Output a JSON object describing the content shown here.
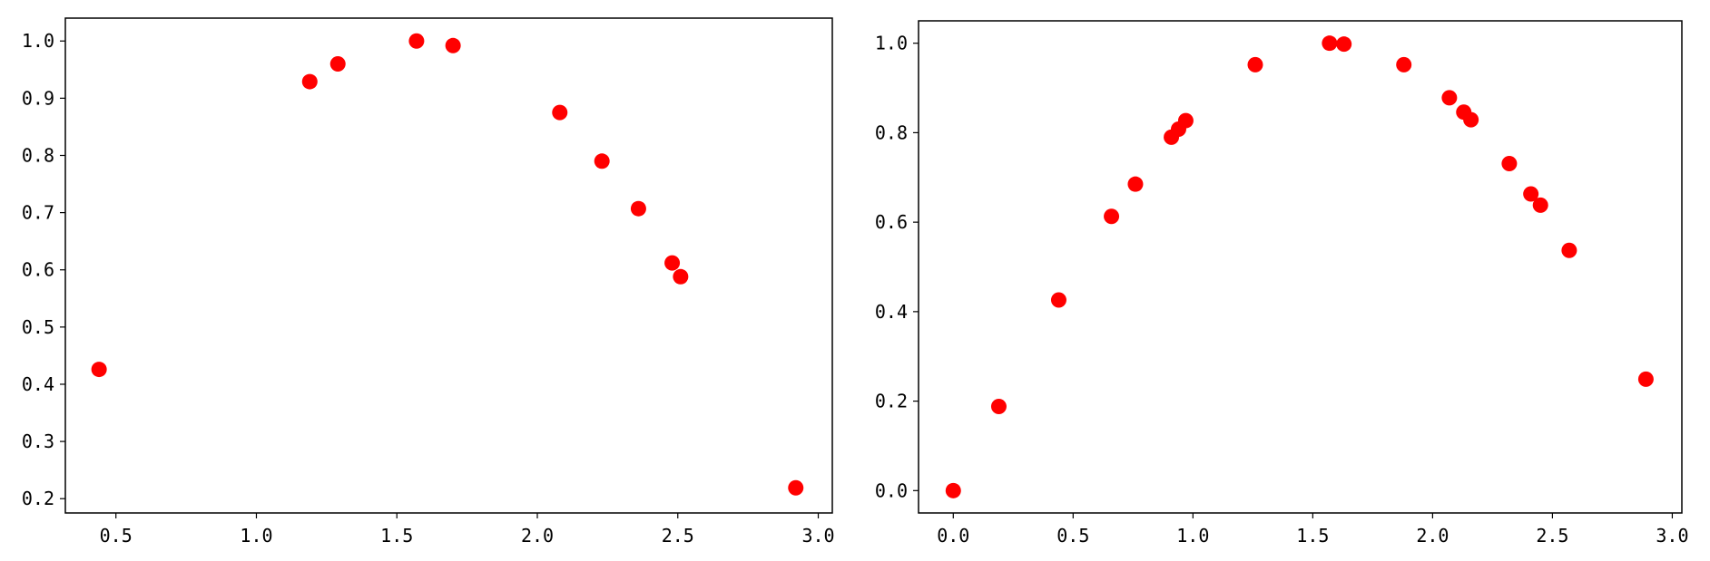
{
  "chart_data": [
    {
      "type": "scatter",
      "color": "#ff0000",
      "xlim": [
        0.32,
        3.05
      ],
      "ylim": [
        0.175,
        1.04
      ],
      "xticks": [
        "0.5",
        "1.0",
        "1.5",
        "2.0",
        "2.5",
        "3.0"
      ],
      "yticks": [
        "0.2",
        "0.3",
        "0.4",
        "0.5",
        "0.6",
        "0.7",
        "0.8",
        "0.9",
        "1.0"
      ],
      "points": [
        {
          "x": 0.44,
          "y": 0.426
        },
        {
          "x": 1.19,
          "y": 0.929
        },
        {
          "x": 1.29,
          "y": 0.96
        },
        {
          "x": 1.57,
          "y": 1.0
        },
        {
          "x": 1.7,
          "y": 0.992
        },
        {
          "x": 2.08,
          "y": 0.875
        },
        {
          "x": 2.23,
          "y": 0.79
        },
        {
          "x": 2.36,
          "y": 0.707
        },
        {
          "x": 2.48,
          "y": 0.612
        },
        {
          "x": 2.51,
          "y": 0.588
        },
        {
          "x": 2.92,
          "y": 0.219
        }
      ],
      "grid": false
    },
    {
      "type": "scatter",
      "color": "#ff0000",
      "xlim": [
        -0.145,
        3.04
      ],
      "ylim": [
        -0.05,
        1.05
      ],
      "xticks": [
        "0.0",
        "0.5",
        "1.0",
        "1.5",
        "2.0",
        "2.5",
        "3.0"
      ],
      "yticks": [
        "0.0",
        "0.2",
        "0.4",
        "0.6",
        "0.8",
        "1.0"
      ],
      "points": [
        {
          "x": 0.0,
          "y": 0.0
        },
        {
          "x": 0.19,
          "y": 0.188
        },
        {
          "x": 0.44,
          "y": 0.426
        },
        {
          "x": 0.66,
          "y": 0.613
        },
        {
          "x": 0.76,
          "y": 0.685
        },
        {
          "x": 0.91,
          "y": 0.79
        },
        {
          "x": 0.94,
          "y": 0.808
        },
        {
          "x": 0.97,
          "y": 0.827
        },
        {
          "x": 1.26,
          "y": 0.952
        },
        {
          "x": 1.57,
          "y": 1.0
        },
        {
          "x": 1.63,
          "y": 0.998
        },
        {
          "x": 1.88,
          "y": 0.952
        },
        {
          "x": 2.07,
          "y": 0.878
        },
        {
          "x": 2.13,
          "y": 0.846
        },
        {
          "x": 2.16,
          "y": 0.829
        },
        {
          "x": 2.32,
          "y": 0.731
        },
        {
          "x": 2.41,
          "y": 0.663
        },
        {
          "x": 2.45,
          "y": 0.638
        },
        {
          "x": 2.57,
          "y": 0.537
        },
        {
          "x": 2.89,
          "y": 0.249
        }
      ],
      "grid": false
    }
  ]
}
